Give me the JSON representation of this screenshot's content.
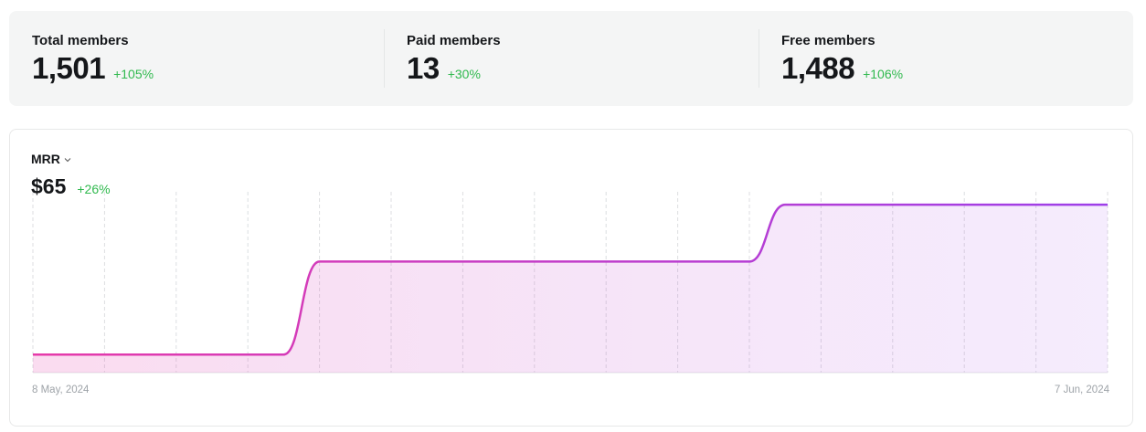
{
  "stats": [
    {
      "label": "Total members",
      "value": "1,501",
      "change": "+105%"
    },
    {
      "label": "Paid members",
      "value": "13",
      "change": "+30%"
    },
    {
      "label": "Free members",
      "value": "1,488",
      "change": "+106%"
    }
  ],
  "chart_data": {
    "type": "line",
    "title": "MRR",
    "headline": "$65",
    "change": "+26%",
    "categories": [
      "8 May, 2024",
      null,
      null,
      null,
      null,
      null,
      null,
      null,
      null,
      null,
      null,
      null,
      null,
      null,
      null,
      null,
      null,
      null,
      null,
      null,
      null,
      null,
      null,
      null,
      null,
      null,
      null,
      null,
      null,
      null,
      "7 Jun, 2024"
    ],
    "values": [
      7,
      7,
      7,
      7,
      7,
      7,
      7,
      7,
      43,
      43,
      43,
      43,
      43,
      43,
      43,
      43,
      43,
      43,
      43,
      43,
      43,
      65,
      65,
      65,
      65,
      65,
      65,
      65,
      65,
      65,
      65
    ],
    "gradient": [
      "#e63aa9",
      "#9d3fe9"
    ],
    "ylim": [
      0,
      70
    ]
  }
}
